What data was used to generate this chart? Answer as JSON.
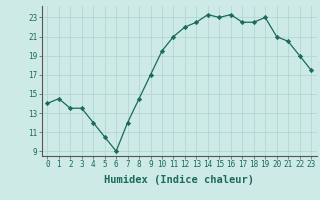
{
  "x": [
    0,
    1,
    2,
    3,
    4,
    5,
    6,
    7,
    8,
    9,
    10,
    11,
    12,
    13,
    14,
    15,
    16,
    17,
    18,
    19,
    20,
    21,
    22,
    23
  ],
  "y": [
    14.0,
    14.5,
    13.5,
    13.5,
    12.0,
    10.5,
    9.0,
    12.0,
    14.5,
    17.0,
    19.5,
    21.0,
    22.0,
    22.5,
    23.3,
    23.0,
    23.3,
    22.5,
    22.5,
    23.0,
    21.0,
    20.5,
    19.0,
    17.5
  ],
  "line_color": "#1a6b5a",
  "marker": "D",
  "marker_size": 2.2,
  "bg_color": "#ceeae6",
  "grid_color": "#add4d0",
  "xlabel": "Humidex (Indice chaleur)",
  "xlim": [
    -0.5,
    23.5
  ],
  "ylim": [
    8.5,
    24.2
  ],
  "yticks": [
    9,
    11,
    13,
    15,
    17,
    19,
    21,
    23
  ],
  "xticks": [
    0,
    1,
    2,
    3,
    4,
    5,
    6,
    7,
    8,
    9,
    10,
    11,
    12,
    13,
    14,
    15,
    16,
    17,
    18,
    19,
    20,
    21,
    22,
    23
  ],
  "tick_fontsize": 5.5,
  "label_fontsize": 7.5,
  "linewidth": 0.9
}
